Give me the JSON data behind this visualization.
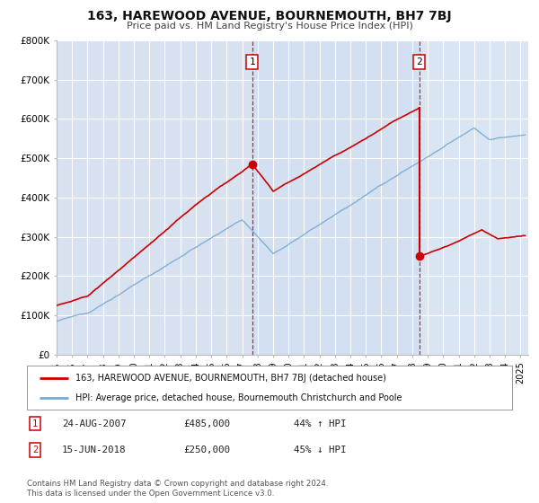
{
  "title": "163, HAREWOOD AVENUE, BOURNEMOUTH, BH7 7BJ",
  "subtitle": "Price paid vs. HM Land Registry's House Price Index (HPI)",
  "background_color": "#ffffff",
  "plot_bg_color": "#dce6f5",
  "plot_bg_color_left": "#e8e8e8",
  "plot_bg_color_right": "#e8e8e8",
  "shade_color": "#d0ddf0",
  "grid_color": "#ffffff",
  "red_line_color": "#cc0000",
  "blue_line_color": "#7aaad0",
  "sale1_x": 2007.65,
  "sale1_y": 485000,
  "sale2_x": 2018.45,
  "sale2_y": 250000,
  "sale2_top_y": 630000,
  "ylim": [
    0,
    800000
  ],
  "xlim": [
    1995.0,
    2025.5
  ],
  "yticks": [
    0,
    100000,
    200000,
    300000,
    400000,
    500000,
    600000,
    700000,
    800000
  ],
  "ytick_labels": [
    "£0",
    "£100K",
    "£200K",
    "£300K",
    "£400K",
    "£500K",
    "£600K",
    "£700K",
    "£800K"
  ],
  "xticks": [
    1995,
    1996,
    1997,
    1998,
    1999,
    2000,
    2001,
    2002,
    2003,
    2004,
    2005,
    2006,
    2007,
    2008,
    2009,
    2010,
    2011,
    2012,
    2013,
    2014,
    2015,
    2016,
    2017,
    2018,
    2019,
    2020,
    2021,
    2022,
    2023,
    2024,
    2025
  ],
  "legend_label_red": "163, HAREWOOD AVENUE, BOURNEMOUTH, BH7 7BJ (detached house)",
  "legend_label_blue": "HPI: Average price, detached house, Bournemouth Christchurch and Poole",
  "annotation1_date": "24-AUG-2007",
  "annotation1_price": "£485,000",
  "annotation1_hpi": "44% ↑ HPI",
  "annotation2_date": "15-JUN-2018",
  "annotation2_price": "£250,000",
  "annotation2_hpi": "45% ↓ HPI",
  "footer1": "Contains HM Land Registry data © Crown copyright and database right 2024.",
  "footer2": "This data is licensed under the Open Government Licence v3.0."
}
